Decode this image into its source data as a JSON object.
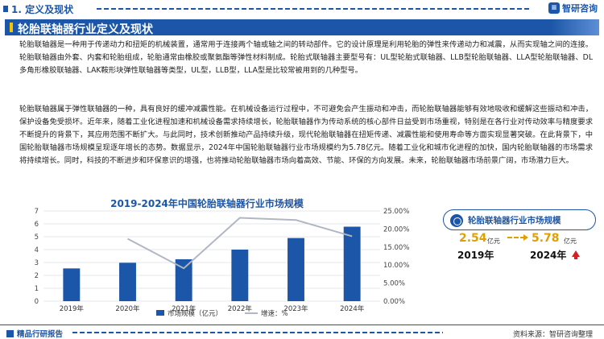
{
  "header": {
    "section": "1. 定义及现状",
    "logo_text": "智研咨询"
  },
  "title": "轮胎联轴器行业定义及现状",
  "paragraphs": [
    "轮胎联轴器是一种用于传递动力和扭矩的机械装置，通常用于连接两个轴或轴之间的转动部件。它的设计原理是利用轮胎的弹性来传递动力和减震，从而实现轴之间的连接。轮胎联轴器由外套、内套和轮胎组成，轮胎通常由橡胶或聚氨酯等弹性材料制成。轮胎式联轴器主要型号有：UL型轮胎式联轴器、LLB型轮胎联轴器、LLA型轮胎联轴器、DL多角形橡胶联轴器、LAK鞍形块弹性联轴器等类型，UL型，LLB型，LLA型是比较常被用到的几种型号。",
    "轮胎联轴器属于弹性联轴器的一种，具有良好的缓冲减震性能。在机械设备运行过程中，不可避免会产生振动和冲击，而轮胎联轴器能够有效地吸收和缓解这些振动和冲击，保护设备免受损坏。近年来，随着工业化进程加速和机械设备需求持续增长，轮胎联轴器作为传动系统的核心部件日益受到市场重视，特别是在各行业对传动效率与精度要求不断提升的背景下，其应用范围不断扩大。与此同时，技术创新推动产品持续升级，现代轮胎联轴器在扭矩传递、减震性能和使用寿命等方面实现显著突破。在此背景下，中国轮胎联轴器市场规模呈现逐年增长的态势。数据显示，2024年中国轮胎联轴器行业市场规模约为5.78亿元。随着工业化和城市化进程的加快，国内轮胎联轴器的市场需求将持续增长。同时，科技的不断进步和环保意识的增强，也将推动轮胎联轴器市场向着高效、节能、环保的方向发展。未来，轮胎联轴器市场前景广阔，市场潜力巨大。"
  ],
  "chart_data": {
    "type": "bar",
    "title": "2019-2024年中国轮胎联轴器行业市场规模",
    "categories": [
      "2019年",
      "2020年",
      "2021年",
      "2022年",
      "2023年",
      "2024年"
    ],
    "series": [
      {
        "name": "市场规模（亿元）",
        "values": [
          2.54,
          2.98,
          3.25,
          4.0,
          4.9,
          5.78
        ],
        "color": "#1c56a8"
      },
      {
        "name": "增速：%",
        "values": [
          null,
          17.3,
          9.1,
          23.1,
          22.5,
          18.0
        ],
        "color": "#b0b6c2"
      }
    ],
    "y_left": {
      "min": 0,
      "max": 7,
      "ticks": [
        "0",
        "1",
        "2",
        "3",
        "4",
        "5",
        "6",
        "7"
      ]
    },
    "y_right": {
      "min": 0,
      "max": 25,
      "ticks": [
        "0.00%",
        "5.00%",
        "10.00%",
        "15.00%",
        "20.00%",
        "25.00%"
      ]
    },
    "legend": "bottom"
  },
  "card": {
    "title": "轮胎联轴器行业市场规模",
    "start_value": "2.54",
    "start_unit": "亿元",
    "start_year": "2019年",
    "end_value": "5.78",
    "end_unit": "亿元",
    "end_year": "2024年"
  },
  "footer": {
    "left": "精品行研报告",
    "source": "资料来源：智研咨询整理"
  },
  "colors": {
    "primary": "#1c56a8",
    "accent": "#e0a000",
    "up": "#d32020"
  }
}
